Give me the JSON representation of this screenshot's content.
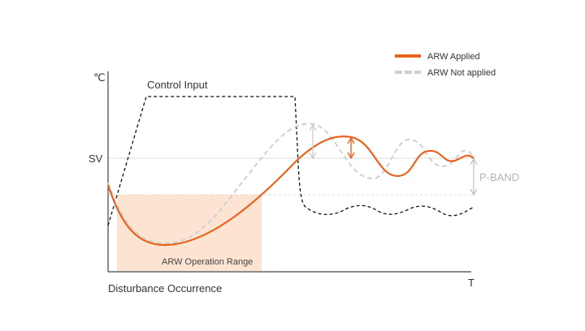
{
  "diagram": {
    "y_unit": "℃",
    "x_unit": "T",
    "sv_label": "SV",
    "control_input_label": "Control Input",
    "pband_label": "P-BAND",
    "arw_range_label": "ARW Operation Range",
    "disturbance_label": "Disturbance Occurrence",
    "legend": {
      "applied": "ARW Applied",
      "not_applied": "ARW Not applied"
    },
    "colors": {
      "applied": "#e8641e",
      "not_applied": "#cfcfcf",
      "control": "#111111",
      "arw_zone": "#fde3d2",
      "axis": "#444444",
      "guide": "#d8d8d8",
      "pband": "#bdbdbd"
    }
  }
}
